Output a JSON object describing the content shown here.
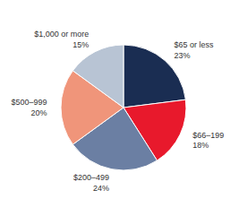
{
  "chart_data": {
    "type": "pie",
    "categories": [
      "$65 or less",
      "$66–199",
      "$200–499",
      "$500–999",
      "$1,000 or more"
    ],
    "values": [
      23,
      18,
      24,
      20,
      15
    ],
    "value_labels": [
      "23%",
      "18%",
      "24%",
      "20%",
      "15%"
    ],
    "colors": [
      "#1a2d52",
      "#e8192c",
      "#6b7fa3",
      "#f0957a",
      "#b8c4d4"
    ],
    "data_labels": true
  }
}
